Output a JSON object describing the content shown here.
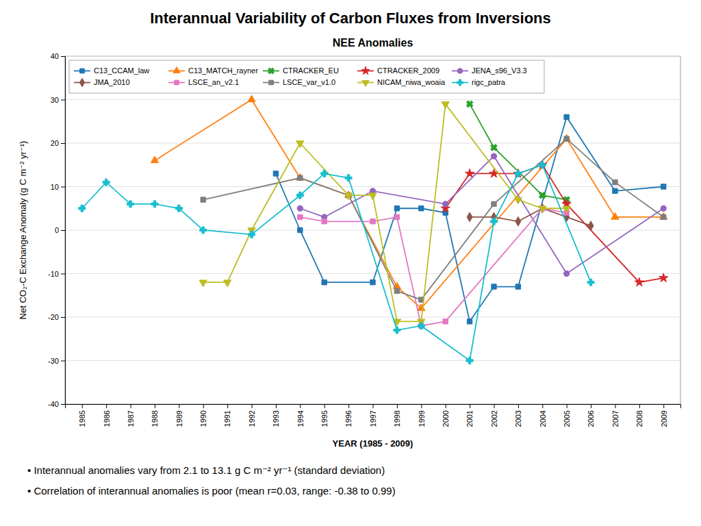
{
  "chart_data": {
    "type": "line",
    "title": "Interannual Variability of Carbon Fluxes from Inversions",
    "subtitle": "NEE Anomalies",
    "xlabel": "YEAR (1985 - 2009)",
    "ylabel": "Net CO₂-C Exchange Anomaly (g C m⁻² yr⁻¹)",
    "annotations": [
      "• Interannual anomalies vary from 2.1 to 13.1 g C m⁻² yr⁻¹ (standard deviation)",
      "• Correlation of interannual anomalies is poor (mean r=0.03, range: -0.38 to 0.99)"
    ],
    "xlim": [
      1984.3,
      2009.7
    ],
    "xticks": [
      1985,
      1986,
      1987,
      1988,
      1989,
      1990,
      1991,
      1992,
      1993,
      1994,
      1995,
      1996,
      1997,
      1998,
      1999,
      2000,
      2001,
      2002,
      2003,
      2004,
      2005,
      2006,
      2007,
      2008,
      2009
    ],
    "ylim": [
      -40,
      40
    ],
    "yticks": [
      -40,
      -30,
      -20,
      -10,
      0,
      10,
      20,
      30,
      40
    ],
    "grid": true,
    "legend": "upper left",
    "series": [
      {
        "name": "C13_CCAM_law",
        "marker": "square",
        "line_style": "solid",
        "x": [
          1993,
          1994,
          1995,
          1997,
          1998,
          1999,
          2000,
          2001,
          2002,
          2003,
          2005,
          2007,
          2009
        ],
        "values": [
          13,
          0,
          -12,
          -12,
          5,
          5,
          4,
          -21,
          -13,
          -13,
          26,
          9,
          10
        ]
      },
      {
        "name": "C13_MATCH_rayner",
        "marker": "triangle-up",
        "line_style": "solid",
        "x": [
          1988,
          1992,
          1994,
          1996,
          1998,
          1999,
          2005,
          2007,
          2009
        ],
        "values": [
          16,
          30,
          12,
          8,
          -13,
          -18,
          21,
          3,
          3
        ]
      },
      {
        "name": "CTRACKER_EU",
        "marker": "x",
        "line_style": "solid",
        "x": [
          2001,
          2002,
          2004,
          2005
        ],
        "values": [
          29,
          19,
          8,
          7
        ]
      },
      {
        "name": "CTRACKER_2009",
        "marker": "star",
        "line_style": "solid",
        "x": [
          2000,
          2001,
          2002,
          2003,
          2004,
          2005,
          2008,
          2009
        ],
        "values": [
          5,
          13,
          13,
          13,
          15,
          6,
          -12,
          -11
        ]
      },
      {
        "name": "JENA_s96_V3.3",
        "marker": "circle",
        "line_style": "solid",
        "x": [
          1994,
          1995,
          1997,
          2000,
          2002,
          2005,
          2009
        ],
        "values": [
          5,
          3,
          9,
          6,
          17,
          -10,
          5
        ]
      },
      {
        "name": "JMA_2010",
        "marker": "diamond",
        "line_style": "solid",
        "x": [
          2001,
          2002,
          2003,
          2004,
          2005,
          2006
        ],
        "values": [
          3,
          3,
          2,
          5,
          3,
          1
        ]
      },
      {
        "name": "LSCE_an_v2.1",
        "marker": "square",
        "line_style": "solid",
        "x": [
          1994,
          1995,
          1997,
          1998,
          1999,
          2000,
          2004,
          2005
        ],
        "values": [
          3,
          2,
          2,
          3,
          -22,
          -21,
          5,
          4
        ]
      },
      {
        "name": "LSCE_var_v1.0",
        "marker": "square",
        "line_style": "solid",
        "x": [
          1990,
          1994,
          1996,
          1998,
          1999,
          2002,
          2005,
          2007,
          2009
        ],
        "values": [
          7,
          12,
          8,
          -14,
          -16,
          6,
          21,
          11,
          3
        ]
      },
      {
        "name": "NICAM_niwa_woaia",
        "marker": "triangle-down",
        "line_style": "solid",
        "x": [
          1990,
          1991,
          1992,
          1994,
          1996,
          1997,
          1998,
          1999,
          2000,
          2003,
          2004,
          2005
        ],
        "values": [
          -12,
          -12,
          0,
          20,
          8,
          8,
          -21,
          -21,
          29,
          7,
          5,
          5
        ]
      },
      {
        "name": "rigc_patra",
        "marker": "plus",
        "line_style": "solid",
        "x": [
          1985,
          1986,
          1987,
          1988,
          1989,
          1990,
          1992,
          1994,
          1995,
          1996,
          1998,
          1999,
          2001,
          2002,
          2003,
          2004,
          2006
        ],
        "values": [
          5,
          11,
          6,
          6,
          5,
          0,
          -1,
          8,
          13,
          12,
          -23,
          -22,
          -30,
          2,
          13,
          15,
          -12
        ]
      }
    ]
  }
}
